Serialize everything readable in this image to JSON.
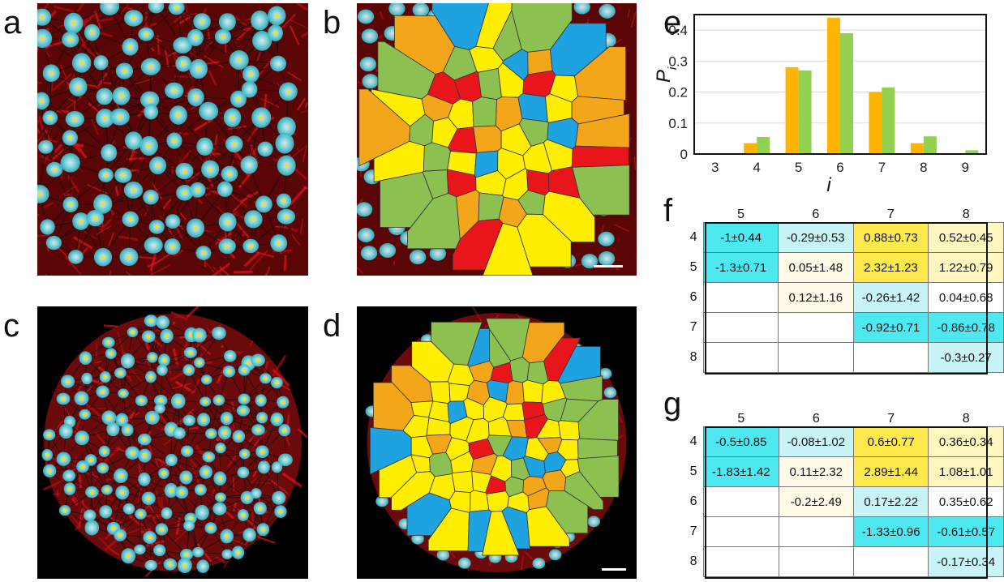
{
  "panels": {
    "a": {
      "label": "a"
    },
    "b": {
      "label": "b"
    },
    "c": {
      "label": "c"
    },
    "d": {
      "label": "d"
    },
    "e": {
      "label": "e"
    },
    "f": {
      "label": "f"
    },
    "g": {
      "label": "g"
    }
  },
  "colors": {
    "hex4": "#1fa2e0",
    "hex5": "#8cc152",
    "hex6": "#ffee00",
    "hex7": "#f4a61a",
    "hex8": "#e8161b",
    "bar_orange": "#ffb400",
    "bar_green": "#92d050",
    "cyan_cell": "#4ee8f0",
    "light_cyan": "#c8f4f8",
    "yellow_cell": "#ffe94d",
    "light_yellow": "#fff6c0",
    "pale_yellow": "#fffbe8"
  },
  "chart_data": {
    "type": "bar",
    "categories": [
      "3",
      "4",
      "5",
      "6",
      "7",
      "8",
      "9"
    ],
    "series": [
      {
        "values": [
          0.002,
          0.035,
          0.28,
          0.44,
          0.2,
          0.035,
          0.002
        ]
      },
      {
        "values": [
          0.002,
          0.055,
          0.27,
          0.39,
          0.215,
          0.057,
          0.012
        ]
      }
    ],
    "xlabel": "i",
    "ylabel": "P",
    "ylabel_sub": "i",
    "ylim": [
      0,
      0.45
    ],
    "yticks": [
      "0",
      "0.1",
      "0.2",
      "0.3",
      "0.4"
    ],
    "grid": true
  },
  "matrix_f": {
    "cols": [
      "5",
      "6",
      "7",
      "8"
    ],
    "rows": [
      {
        "label": "4",
        "cells": [
          "-1±0.44",
          "-0.29±0.53",
          "0.88±0.73",
          "0.52±0.45"
        ],
        "tone": [
          "cyan",
          "lcyan",
          "yellow",
          "lyellow"
        ]
      },
      {
        "label": "5",
        "cells": [
          "-1.3±0.71",
          "0.05±1.48",
          "2.32±1.23",
          "1.22±0.79"
        ],
        "tone": [
          "cyan",
          "pale",
          "yellow",
          "lyellow"
        ]
      },
      {
        "label": "6",
        "cells": [
          "",
          "0.12±1.16",
          "-0.26±1.42",
          "0.04±0.68"
        ],
        "tone": [
          "",
          "pale",
          "lcyan",
          ""
        ]
      },
      {
        "label": "7",
        "cells": [
          "",
          "",
          "-0.92±0.71",
          "-0.86±0.78"
        ],
        "tone": [
          "",
          "",
          "cyan",
          "cyan"
        ]
      },
      {
        "label": "8",
        "cells": [
          "",
          "",
          "",
          "-0.3±0.27"
        ],
        "tone": [
          "",
          "",
          "",
          "lcyan"
        ]
      }
    ]
  },
  "matrix_g": {
    "cols": [
      "5",
      "6",
      "7",
      "8"
    ],
    "rows": [
      {
        "label": "4",
        "cells": [
          "-0.5±0.85",
          "-0.08±1.02",
          "0.6±0.77",
          "0.36±0.34"
        ],
        "tone": [
          "cyan",
          "lcyan",
          "yellow",
          "lyellow"
        ]
      },
      {
        "label": "5",
        "cells": [
          "-1.83±1.42",
          "0.11±2.32",
          "2.89±1.44",
          "1.08±1.01"
        ],
        "tone": [
          "cyan",
          "pale",
          "yellow",
          "lyellow"
        ]
      },
      {
        "label": "6",
        "cells": [
          "",
          "-0.2±2.49",
          "0.17±2.22",
          "0.35±0.62"
        ],
        "tone": [
          "",
          "pale",
          "lcyan",
          ""
        ]
      },
      {
        "label": "7",
        "cells": [
          "",
          "",
          "-1.33±0.96",
          "-0.61±0.57"
        ],
        "tone": [
          "",
          "",
          "cyan",
          "cyan"
        ]
      },
      {
        "label": "8",
        "cells": [
          "",
          "",
          "",
          "-0.17±0.34"
        ],
        "tone": [
          "",
          "",
          "",
          "lcyan"
        ]
      }
    ]
  }
}
